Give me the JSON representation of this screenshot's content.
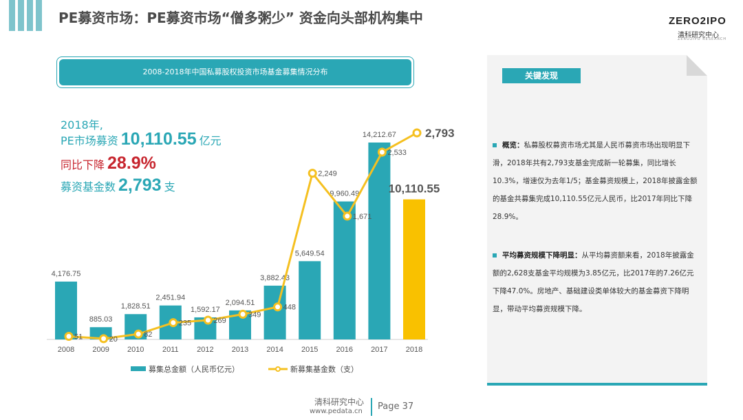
{
  "header": {
    "title": "PE募资市场：PE募资市场“僧多粥少” 资金向头部机构集中",
    "logo_main": "ZERO2IPO",
    "logo_sub": "清科研究中心",
    "logo_tiny": "ZERO2IPO RESEARCH"
  },
  "chart_banner": "2008-2018年中国私募股权投资市场基金募集情况分布",
  "highlights": {
    "year_label": "2018年,",
    "line2_prefix": "PE市场募资",
    "line2_value": "10,110.55",
    "line2_unit": "亿元",
    "line3_prefix": "同比下降",
    "line3_value": "28.9%",
    "line4_prefix": "募资基金数",
    "line4_value": "2,793",
    "line4_unit": "支"
  },
  "chart_data": {
    "type": "bar",
    "categories": [
      "2008",
      "2009",
      "2010",
      "2011",
      "2012",
      "2013",
      "2014",
      "2015",
      "2016",
      "2017",
      "2018"
    ],
    "series": [
      {
        "name": "募集总金额（人民币亿元）",
        "kind": "bar",
        "values": [
          4176.75,
          885.03,
          1828.51,
          2451.94,
          1592.17,
          2094.51,
          3882.43,
          5649.54,
          9960.49,
          14212.67,
          10110.55
        ],
        "labels": [
          "4,176.75",
          "885.03",
          "1,828.51",
          "2,451.94",
          "1,592.17",
          "2,094.51",
          "3,882.43",
          "5,649.54",
          "9,960.49",
          "14,212.67",
          "10,110.55"
        ]
      },
      {
        "name": "新募集基金数（支）",
        "kind": "line",
        "values": [
          51,
          20,
          82,
          235,
          269,
          349,
          448,
          2249,
          1671,
          2533,
          2793
        ],
        "labels": [
          "51",
          "20",
          "82",
          "235",
          "269",
          "349",
          "448",
          "2,249",
          "1,671",
          "2,533",
          "2,793"
        ]
      }
    ],
    "colors": {
      "bar": "#2aa7b5",
      "bar_highlight": "#f9c100",
      "line": "#f5c020"
    },
    "legend_position": "bottom"
  },
  "findings": {
    "label": "关键发现",
    "p1_title": "概览：",
    "p1_text": "私募股权募资市场尤其是人民币募资市场出现明显下滑，2018年共有2,793支基金完成新一轮募集，同比增长10.3%，增速仅为去年1/5；基金募资规模上，2018年披露金额的基金共募集完成10,110.55亿元人民币，比2017年同比下降28.9%。",
    "p2_title": "平均募资规模下降明显：",
    "p2_text": "从平均募资额来看，2018年披露金额的2,628支基金平均规模为3.85亿元，比2017年的7.26亿元下降47.0%。房地产、基础建设类单体较大的基金募资下降明显，带动平均募资规模下降。"
  },
  "footer": {
    "org": "清科研究中心",
    "url": "www.pedata.cn",
    "page": "Page 37"
  }
}
